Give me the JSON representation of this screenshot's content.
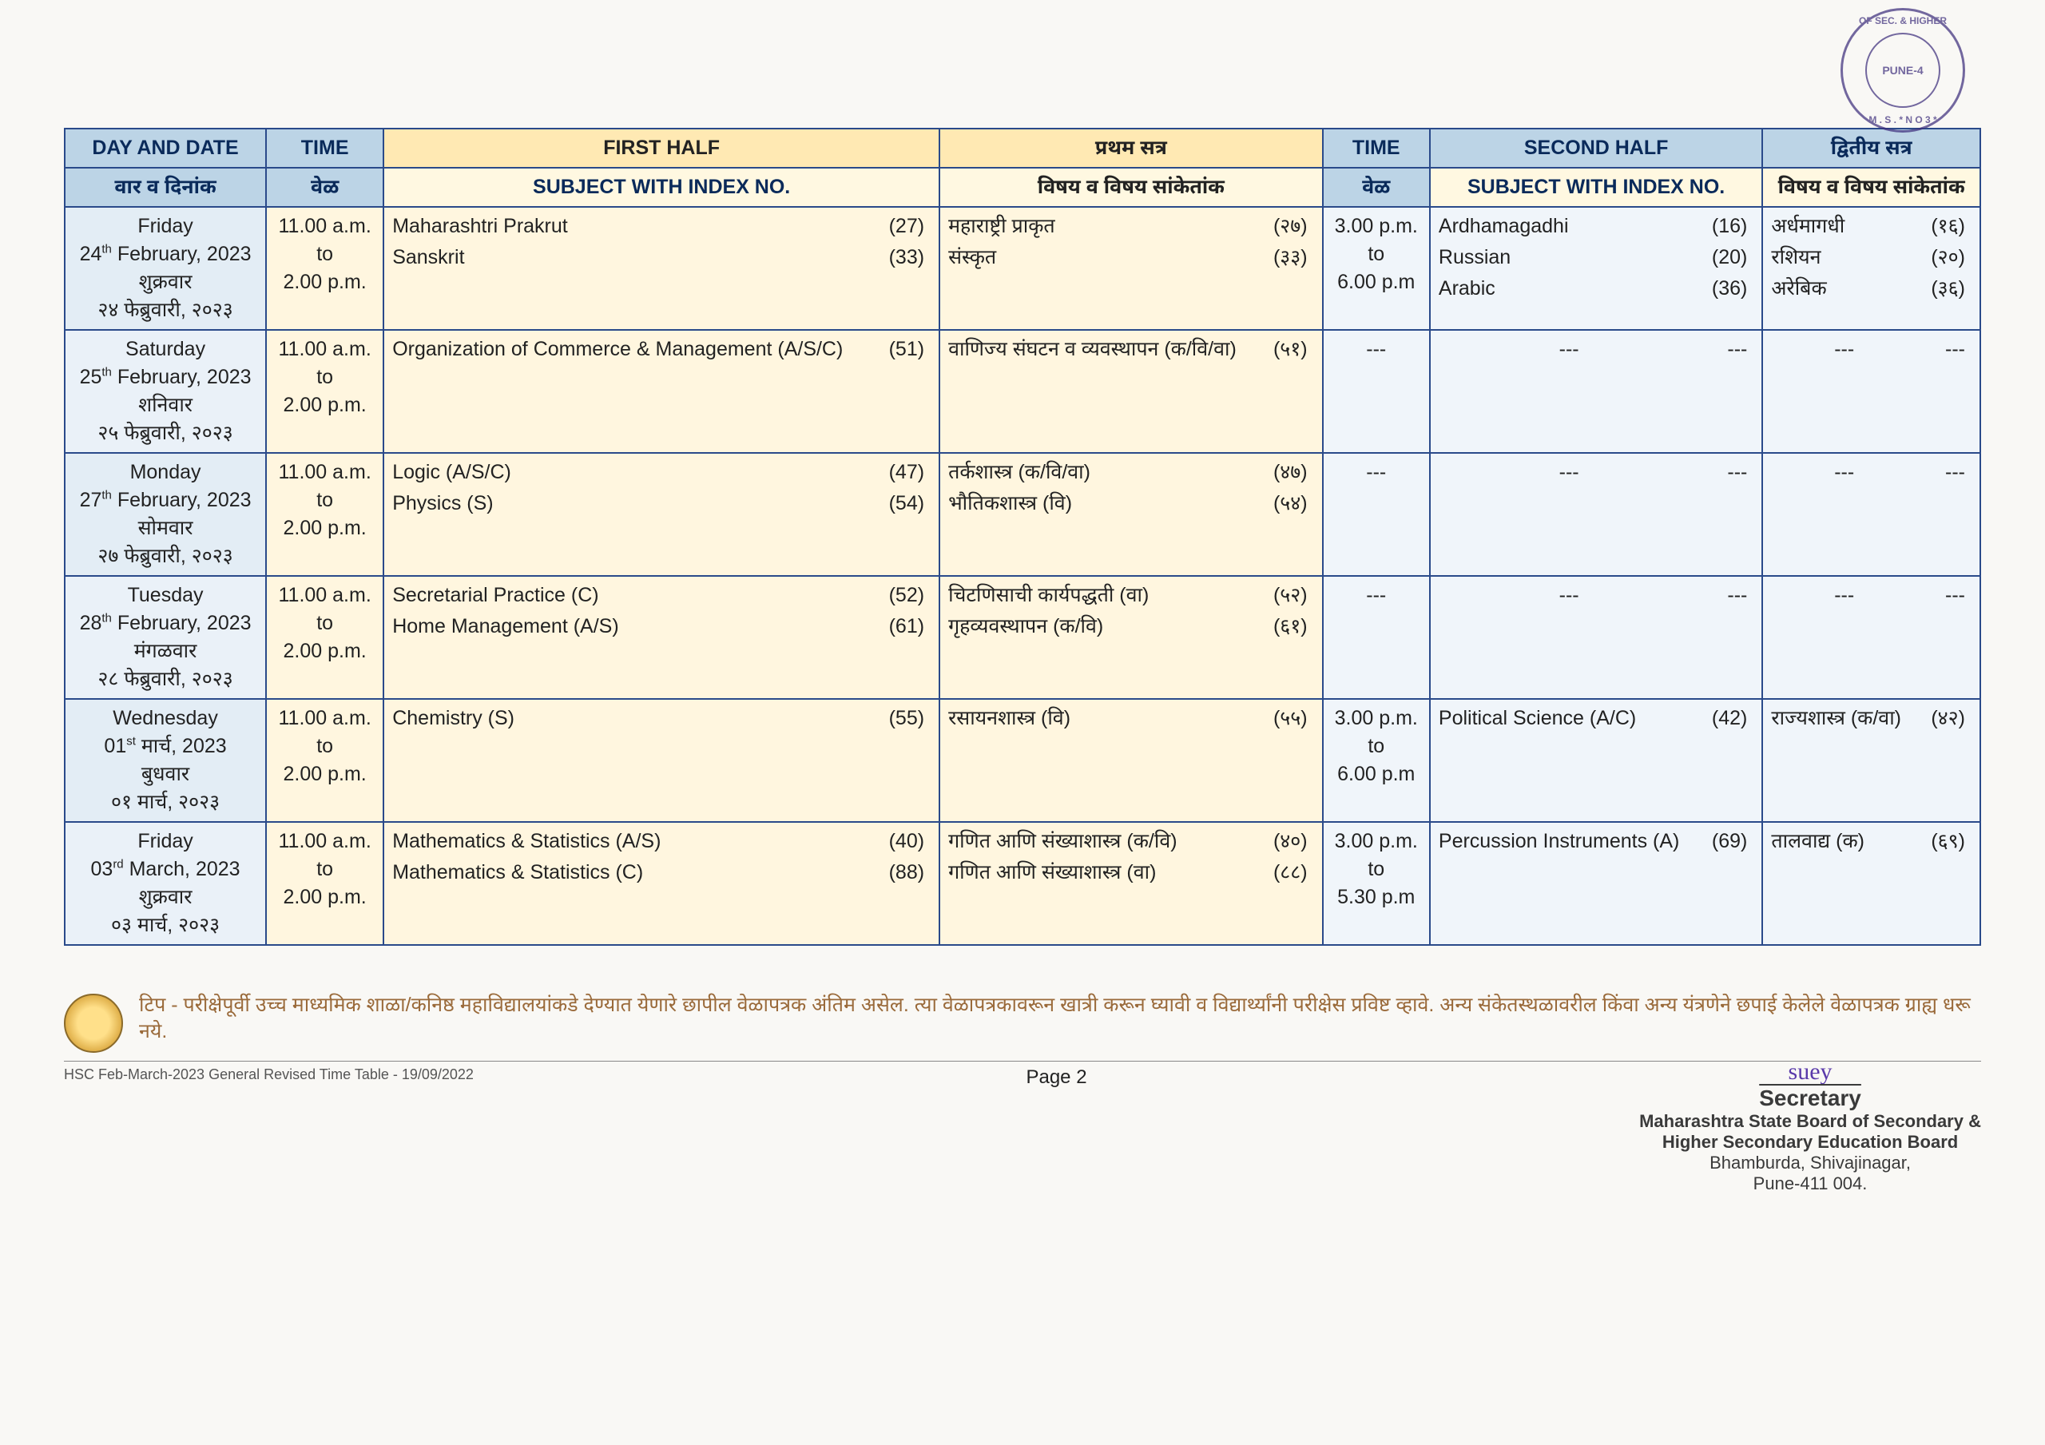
{
  "stamp": {
    "ring_top": "OF SEC. & HIGHER",
    "ring_bottom": "M . S .  * N O 3 *",
    "center": "PUNE-4",
    "color": "#3a2a7a"
  },
  "headers": {
    "day_en": "DAY AND DATE",
    "day_mr": "वार व दिनांक",
    "time_en": "TIME",
    "time_mr": "वेळ",
    "first_half_en": "FIRST HALF",
    "first_half_mr": "प्रथम सत्र",
    "subj_idx_en": "SUBJECT WITH INDEX NO.",
    "subj_idx_mr": "विषय व विषय सांकेतांक",
    "second_half_en": "SECOND HALF",
    "second_half_mr": "द्वितीय सत्र"
  },
  "rows": [
    {
      "day_en": "Friday",
      "date_en": "24<sup>th</sup> February, 2023",
      "day_mr": "शुक्रवार",
      "date_mr": "२४ फेब्रुवारी, २०२३",
      "time1": "11.00 a.m.<br>to<br>2.00 p.m.",
      "fh_en": [
        [
          "Maharashtri Prakrut",
          "(27)"
        ],
        [
          "Sanskrit",
          "(33)"
        ]
      ],
      "fh_mr": [
        [
          "महाराष्ट्री प्राकृत",
          "(२७)"
        ],
        [
          "संस्कृत",
          "(३३)"
        ]
      ],
      "time2": "3.00 p.m.<br>to<br>6.00 p.m",
      "sh_en": [
        [
          "Ardhamagadhi",
          "(16)"
        ],
        [
          "Russian",
          "(20)"
        ],
        [
          "Arabic",
          "(36)"
        ]
      ],
      "sh_mr": [
        [
          "अर्धमागधी",
          "(१६)"
        ],
        [
          "रशियन",
          "(२०)"
        ],
        [
          "अरेबिक",
          "(३६)"
        ]
      ]
    },
    {
      "day_en": "Saturday",
      "date_en": "25<sup>th</sup> February, 2023",
      "day_mr": "शनिवार",
      "date_mr": "२५ फेब्रुवारी, २०२३",
      "time1": "11.00 a.m.<br>to<br>2.00 p.m.",
      "fh_en": [
        [
          "Organization of Commerce & Management (A/S/C)",
          "(51)"
        ]
      ],
      "fh_mr": [
        [
          "वाणिज्य संघटन व व्यवस्थापन (क/वि/वा)",
          "(५१)"
        ]
      ],
      "time2": "---",
      "sh_en": [
        [
          "---",
          "---"
        ]
      ],
      "sh_mr": [
        [
          "---",
          "---"
        ]
      ]
    },
    {
      "day_en": "Monday",
      "date_en": "27<sup>th</sup> February, 2023",
      "day_mr": "सोमवार",
      "date_mr": "२७ फेब्रुवारी, २०२३",
      "time1": "11.00 a.m.<br>to<br>2.00 p.m.",
      "fh_en": [
        [
          "Logic  (A/S/C)",
          "(47)"
        ],
        [
          "Physics (S)",
          "(54)"
        ]
      ],
      "fh_mr": [
        [
          "तर्कशास्त्र (क/वि/वा)",
          "(४७)"
        ],
        [
          "भौतिकशास्त्र (वि)",
          "(५४)"
        ]
      ],
      "time2": "---",
      "sh_en": [
        [
          "---",
          "---"
        ]
      ],
      "sh_mr": [
        [
          "---",
          "---"
        ]
      ]
    },
    {
      "day_en": "Tuesday",
      "date_en": "28<sup>th</sup> February, 2023",
      "day_mr": "मंगळवार",
      "date_mr": "२८ फेब्रुवारी, २०२३",
      "time1": "11.00 a.m.<br>to<br>2.00 p.m.",
      "fh_en": [
        [
          "Secretarial Practice (C)",
          "(52)"
        ],
        [
          "Home Management (A/S)",
          "(61)"
        ]
      ],
      "fh_mr": [
        [
          "चिटणिसाची कार्यपद्धती (वा)",
          "(५२)"
        ],
        [
          "गृहव्यवस्थापन (क/वि)",
          "(६१)"
        ]
      ],
      "time2": "---",
      "sh_en": [
        [
          "---",
          "---"
        ]
      ],
      "sh_mr": [
        [
          "---",
          "---"
        ]
      ]
    },
    {
      "day_en": "Wednesday",
      "date_en": "01<sup>st</sup> मार्च, 2023",
      "day_mr": "बुधवार",
      "date_mr": "०१ मार्च, २०२३",
      "time1": "11.00 a.m.<br>to<br>2.00 p.m.",
      "fh_en": [
        [
          "Chemistry (S)",
          "(55)"
        ]
      ],
      "fh_mr": [
        [
          "रसायनशास्त्र (वि)",
          "(५५)"
        ]
      ],
      "time2": "3.00 p.m.<br>to<br>6.00 p.m",
      "sh_en": [
        [
          "Political Science (A/C)",
          "(42)"
        ]
      ],
      "sh_mr": [
        [
          "राज्यशास्त्र (क/वा)",
          "(४२)"
        ]
      ]
    },
    {
      "day_en": "Friday",
      "date_en": "03<sup>rd</sup> March, 2023",
      "day_mr": "शुक्रवार",
      "date_mr": "०३ मार्च, २०२३",
      "time1": "11.00 a.m.<br>to<br>2.00 p.m.",
      "fh_en": [
        [
          "Mathematics & Statistics (A/S)",
          "(40)"
        ],
        [
          "Mathematics & Statistics (C)",
          "(88)"
        ]
      ],
      "fh_mr": [
        [
          "गणित आणि संख्याशास्त्र (क/वि)",
          "(४०)"
        ],
        [
          "गणित आणि संख्याशास्त्र (वा)",
          "(८८)"
        ]
      ],
      "time2": "3.00 p.m.<br>to<br>5.30 p.m",
      "sh_en": [
        [
          "Percussion Instruments (A)",
          "(69)"
        ]
      ],
      "sh_mr": [
        [
          "तालवाद्य (क)",
          "(६९)"
        ]
      ]
    }
  ],
  "footnote": "टिप - परीक्षेपूर्वी उच्च माध्यमिक शाळा/कनिष्ठ महाविद्यालयांकडे देण्यात येणारे छापील वेळापत्रक अंतिम असेल. त्या वेळापत्रकावरून खात्री करून घ्यावी व विद्यार्थ्यांनी परीक्षेस प्रविष्ट व्हावे. अन्य संकेतस्थळावरील किंवा अन्य यंत्रणेने छपाई केलेले वेळापत्रक ग्राह्य धरू नये.",
  "footer_left": "HSC Feb-March-2023 General Revised Time Table  - 19/09/2022",
  "footer_center": "Page 2",
  "signature": {
    "sig": "suey",
    "title": "Secretary",
    "org1": "Maharashtra State Board of Secondary &",
    "org2": "Higher Secondary Education Board",
    "addr1": "Bhamburda, Shivajinagar,",
    "addr2": "Pune-411 004."
  },
  "colors": {
    "header_blue": "#bcd4e6",
    "header_cream": "#ffe9b3",
    "sub_cream": "#fff8e1",
    "day_bg": "#e3edf5",
    "fh_bg": "#fff6df",
    "sh_bg": "#f0f5fa",
    "border": "#2a4a8a"
  }
}
